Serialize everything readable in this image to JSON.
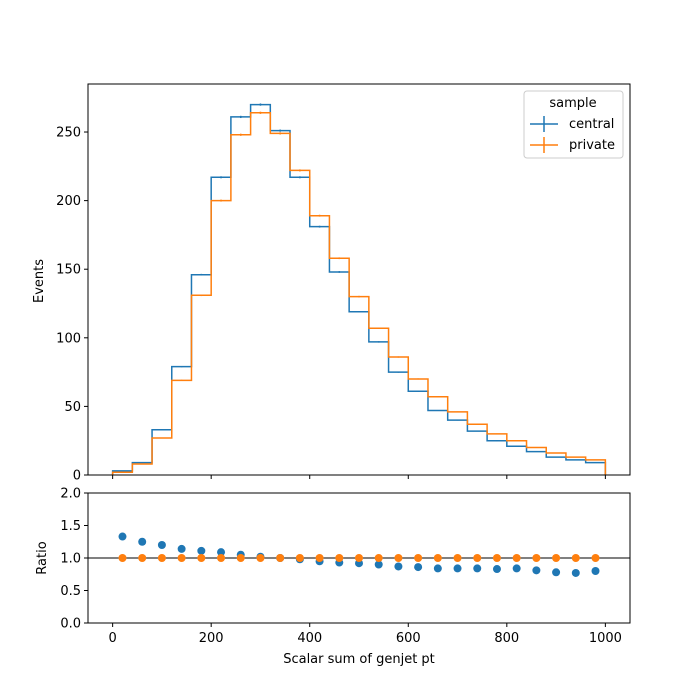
{
  "chart_data": [
    {
      "type": "step",
      "xlabel": "",
      "ylabel": "Events",
      "xlim": [
        -50,
        1050
      ],
      "ylim": [
        0,
        285
      ],
      "yticks": [
        0,
        50,
        100,
        150,
        200,
        250
      ],
      "ytick_labels": [
        "0",
        "50",
        "100",
        "150",
        "200",
        "250"
      ],
      "xticks": [
        0,
        200,
        400,
        600,
        800,
        1000
      ],
      "bin_edges": [
        0,
        40,
        80,
        120,
        160,
        200,
        240,
        280,
        320,
        360,
        400,
        440,
        480,
        520,
        560,
        600,
        640,
        680,
        720,
        760,
        800,
        840,
        880,
        920,
        960,
        1000
      ],
      "legend": {
        "title": "sample",
        "placement": "upper right"
      },
      "series": [
        {
          "name": "central",
          "color": "#1f77b4",
          "values": [
            3,
            9,
            33,
            79,
            146,
            217,
            261,
            270,
            251,
            217,
            181,
            148,
            119,
            97,
            75,
            61,
            47,
            40,
            32,
            25,
            21,
            17,
            13,
            11,
            9
          ]
        },
        {
          "name": "private",
          "color": "#ff7f0e",
          "values": [
            2,
            8,
            27,
            69,
            131,
            200,
            248,
            264,
            249,
            222,
            189,
            158,
            130,
            107,
            86,
            70,
            57,
            46,
            37,
            30,
            25,
            20,
            16,
            13,
            11
          ]
        }
      ]
    },
    {
      "type": "scatter",
      "xlabel": "Scalar sum of genjet pt",
      "ylabel": "Ratio",
      "xlim": [
        -50,
        1050
      ],
      "ylim": [
        0,
        2
      ],
      "yticks": [
        0,
        0.5,
        1,
        1.5,
        2
      ],
      "ytick_labels": [
        "0.0",
        "0.5",
        "1.0",
        "1.5",
        "2.0"
      ],
      "xticks": [
        0,
        200,
        400,
        600,
        800,
        1000
      ],
      "xtick_labels": [
        "0",
        "200",
        "400",
        "600",
        "800",
        "1000"
      ],
      "reference_line": 1.0,
      "x": [
        20,
        60,
        100,
        140,
        180,
        220,
        260,
        300,
        340,
        380,
        420,
        460,
        500,
        540,
        580,
        620,
        660,
        700,
        740,
        780,
        820,
        860,
        900,
        940,
        980
      ],
      "series": [
        {
          "name": "central",
          "color": "#1f77b4",
          "values": [
            1.33,
            1.25,
            1.2,
            1.14,
            1.11,
            1.09,
            1.05,
            1.02,
            1.0,
            0.98,
            0.95,
            0.93,
            0.92,
            0.9,
            0.87,
            0.86,
            0.84,
            0.84,
            0.84,
            0.83,
            0.84,
            0.81,
            0.78,
            0.77,
            0.8
          ]
        },
        {
          "name": "private",
          "color": "#ff7f0e",
          "values": [
            1,
            1,
            1,
            1,
            1,
            1,
            1,
            1,
            1,
            1,
            1,
            1,
            1,
            1,
            1,
            1,
            1,
            1,
            1,
            1,
            1,
            1,
            1,
            1,
            1
          ]
        }
      ]
    }
  ]
}
